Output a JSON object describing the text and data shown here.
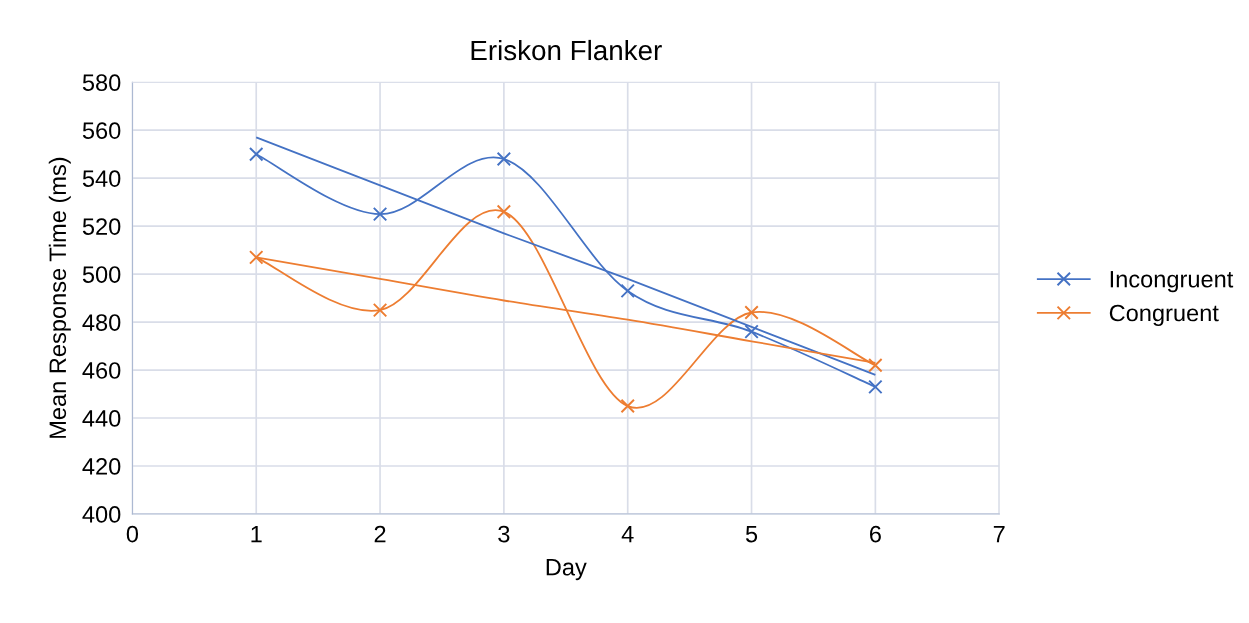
{
  "chart_data": {
    "type": "line",
    "title": "Eriskon Flanker",
    "xlabel": "Day",
    "ylabel": "Mean Response Time (ms)",
    "x": [
      1,
      2,
      3,
      4,
      5,
      6
    ],
    "series": [
      {
        "name": "Incongruent",
        "color": "#4472c4",
        "marker": "cross",
        "values": [
          550,
          525,
          548,
          493,
          476,
          453
        ]
      },
      {
        "name": "Congruent",
        "color": "#ed7d31",
        "marker": "cross",
        "values": [
          507,
          485,
          526,
          445,
          484,
          462
        ]
      },
      {
        "type": "line",
        "color": "#4472c4",
        "marker": "none",
        "values": [
          557,
          537,
          517,
          498,
          478,
          458
        ]
      },
      {
        "type": "line",
        "color": "#ed7d31",
        "marker": "none",
        "values": [
          507,
          498,
          489,
          481,
          472,
          463
        ]
      }
    ],
    "xlim": [
      0,
      7
    ],
    "xticks": [
      0,
      1,
      2,
      3,
      4,
      5,
      6,
      7
    ],
    "ylim": [
      400,
      580
    ],
    "yticks": [
      400,
      420,
      440,
      460,
      480,
      500,
      520,
      540,
      560,
      580
    ],
    "grid": true,
    "legend": "right",
    "line_style": "solid"
  }
}
